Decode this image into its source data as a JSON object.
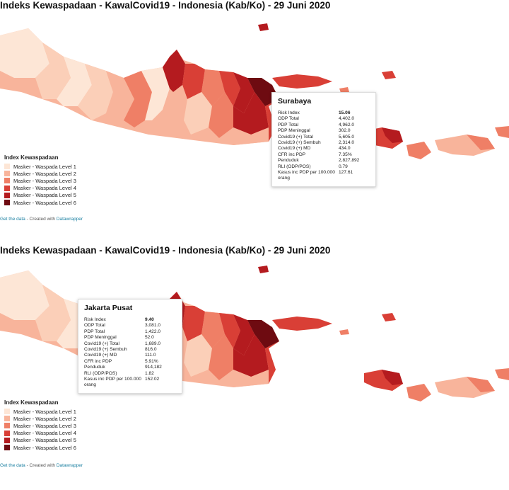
{
  "title": "Indeks Kewaspadaan - KawalCovid19 - Indonesia (Kab/Ko) - 29 Juni 2020",
  "legend": {
    "title": "Index Kewaspadaan",
    "items": [
      {
        "label": "Masker - Waspada Level 1",
        "color": "#fde6d6"
      },
      {
        "label": "Masker - Waspada Level 2",
        "color": "#f8b49b"
      },
      {
        "label": "Masker - Waspada Level 3",
        "color": "#ef7f66"
      },
      {
        "label": "Masker - Waspada Level 4",
        "color": "#d93f36"
      },
      {
        "label": "Masker - Waspada Level 5",
        "color": "#b41b1f"
      },
      {
        "label": "Masker - Waspada Level 6",
        "color": "#6e0b11"
      }
    ]
  },
  "footer": {
    "get_data": "Get the data",
    "created_with": " - Created with ",
    "datawrapper": "Datawrapper"
  },
  "panels": [
    {
      "tooltip": {
        "name": "Surabaya",
        "rows": [
          {
            "label": "Risk Index",
            "value": "15.06"
          },
          {
            "label": "ODP Total",
            "value": "4,402.0"
          },
          {
            "label": "PDP Total",
            "value": "4,962.0"
          },
          {
            "label": "PDP Meninggal",
            "value": "302.0"
          },
          {
            "label": "Covid19 (+) Total",
            "value": "5,605.0"
          },
          {
            "label": "Covid19 (+) Sembuh",
            "value": "2,314.0"
          },
          {
            "label": "Covid19 (+) MD",
            "value": "434.0"
          },
          {
            "label": "CFR inc PDP",
            "value": "7.35%"
          },
          {
            "label": "Penduduk",
            "value": "2,827,892"
          },
          {
            "label": "RLI (ODP/POS)",
            "value": "0.79"
          },
          {
            "label": "Kasus inc PDP per 100.000 orang",
            "value": "127.61"
          }
        ]
      }
    },
    {
      "tooltip": {
        "name": "Jakarta Pusat",
        "rows": [
          {
            "label": "Risk Index",
            "value": "9.40"
          },
          {
            "label": "ODP Total",
            "value": "3,081.0"
          },
          {
            "label": "PDP Total",
            "value": "1,422.0"
          },
          {
            "label": "PDP Meninggal",
            "value": "52.0"
          },
          {
            "label": "Covid19 (+) Total",
            "value": "1,689.0"
          },
          {
            "label": "Covid19 (+) Sembuh",
            "value": "816.0"
          },
          {
            "label": "Covid19 (+) MD",
            "value": "111.0"
          },
          {
            "label": "CFR inc PDP",
            "value": "5.91%"
          },
          {
            "label": "Penduduk",
            "value": "914,182"
          },
          {
            "label": "RLI (ODP/POS)",
            "value": "1.82"
          },
          {
            "label": "Kasus inc PDP per 100.000 orang",
            "value": "152.02"
          }
        ]
      }
    }
  ]
}
